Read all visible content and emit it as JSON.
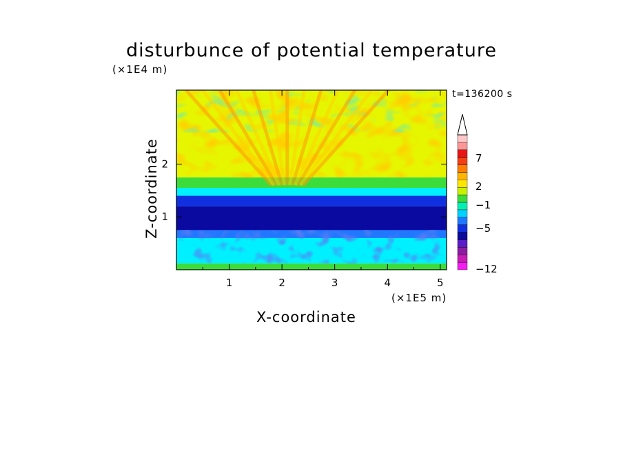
{
  "chart_data": {
    "type": "heatmap",
    "title": "disturbunce of potential temperature",
    "xlabel": "X-coordinate",
    "ylabel": "Z-coordinate",
    "x_unit": "(×1E5 m)",
    "y_unit": "(×1E4 m)",
    "time_label": "t=136200 s",
    "xlim": [
      0,
      5.12
    ],
    "ylim": [
      0,
      3.4
    ],
    "x_ticks": [
      1,
      2,
      3,
      4,
      5
    ],
    "y_ticks": [
      1,
      2
    ],
    "colorbar": {
      "tick_labels": [
        "7",
        "2",
        "−1",
        "−5",
        "−12"
      ],
      "tick_values": [
        7,
        2,
        -1,
        -5,
        -12
      ],
      "extend": "max",
      "colors": [
        "#f41cf0",
        "#c81cb4",
        "#8c1ca0",
        "#5a1cc8",
        "#0a0aa0",
        "#1030e0",
        "#2078ff",
        "#00d2ff",
        "#00f0b4",
        "#3cdc3c",
        "#c8f000",
        "#ffe600",
        "#ffb400",
        "#ff7d00",
        "#f04014",
        "#e61414",
        "#ff9696",
        "#ffc8c8"
      ]
    },
    "layers": [
      {
        "z": [
          0.0,
          0.12
        ],
        "value": 0
      },
      {
        "z": [
          0.12,
          0.6
        ],
        "value": -1
      },
      {
        "z": [
          0.6,
          0.75
        ],
        "value": -2
      },
      {
        "z": [
          0.75,
          1.2
        ],
        "value": -4
      },
      {
        "z": [
          1.2,
          1.4
        ],
        "value": -3
      },
      {
        "z": [
          1.4,
          1.55
        ],
        "value": -1
      },
      {
        "z": [
          1.55,
          1.75
        ],
        "value": 0
      },
      {
        "z": [
          1.75,
          3.4
        ],
        "value": 1
      }
    ]
  }
}
